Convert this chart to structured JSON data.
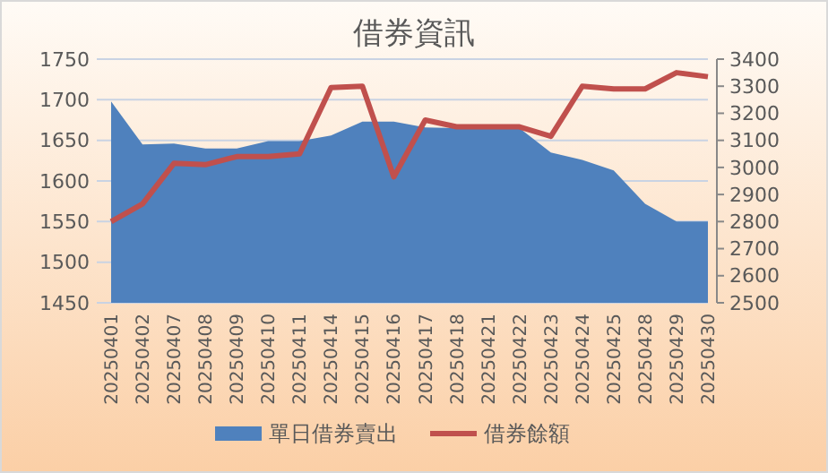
{
  "chart_data": {
    "type": "area",
    "title": "借券資訊",
    "categories": [
      "20250401",
      "20250402",
      "20250407",
      "20250408",
      "20250409",
      "20250410",
      "20250411",
      "20250414",
      "20250415",
      "20250416",
      "20250417",
      "20250418",
      "20250421",
      "20250422",
      "20250423",
      "20250424",
      "20250425",
      "20250428",
      "20250429",
      "20250430"
    ],
    "series": [
      {
        "name": "單日借券賣出",
        "color": "#4f81bd",
        "values": [
          1698,
          1645,
          1646,
          1640,
          1640,
          1649,
          1649,
          1656,
          1673,
          1673,
          1666,
          1665,
          1665,
          1665,
          1635,
          1626,
          1613,
          1572,
          1550,
          1550
        ]
      },
      {
        "name": "借券餘額",
        "type": "line",
        "axis": "y2",
        "color": "#c0504d",
        "values": [
          2800,
          2865,
          3015,
          3010,
          3040,
          3040,
          3050,
          3295,
          3300,
          2965,
          3175,
          3150,
          3150,
          3150,
          3115,
          3300,
          3290,
          3290,
          3350,
          3335
        ]
      }
    ],
    "ylim": [
      1450,
      1750
    ],
    "yticks": [
      1450,
      1500,
      1550,
      1600,
      1650,
      1700,
      1750
    ],
    "y2lim": [
      2500,
      3400
    ],
    "y2ticks": [
      2500,
      2600,
      2700,
      2800,
      2900,
      3000,
      3100,
      3200,
      3300,
      3400
    ],
    "grid": "y",
    "legend": "bottom",
    "marker": "none"
  }
}
